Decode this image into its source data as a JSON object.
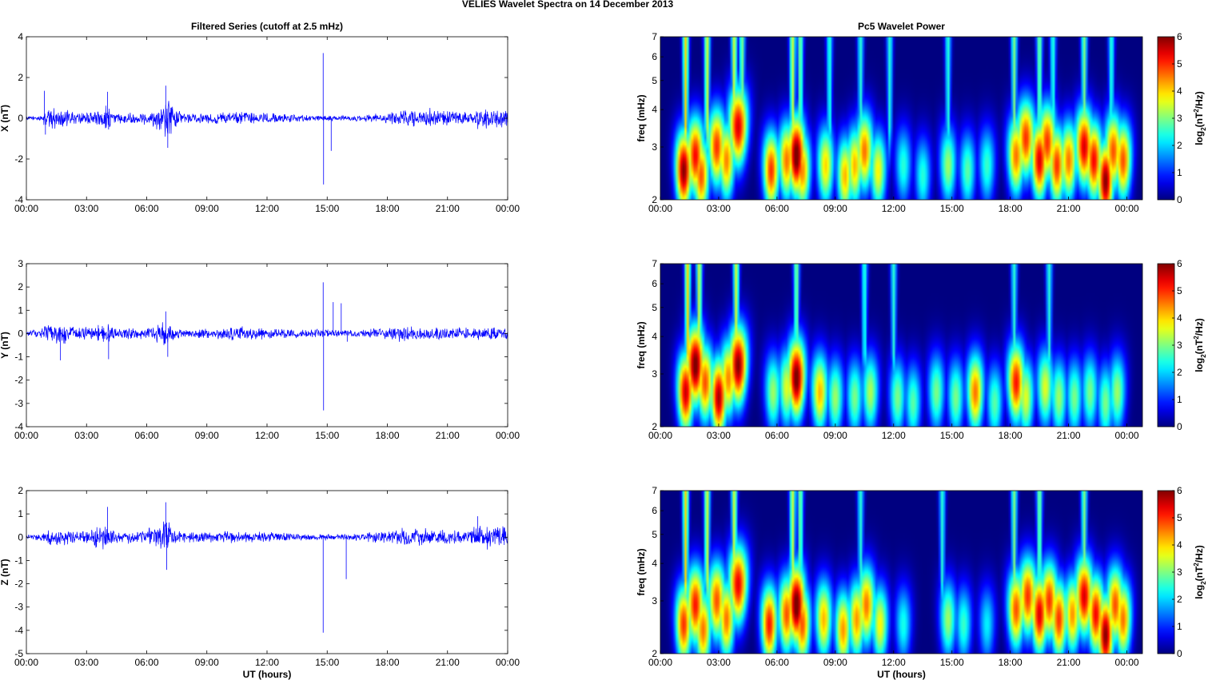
{
  "figure": {
    "title": "VELIES Wavelet Spectra on 14 December  2013"
  },
  "chart_data": [
    {
      "type": "line",
      "panel": "x-series",
      "title": "Filtered Series (cutoff at 2.5 mHz)",
      "ylabel": "X (nT)",
      "xlabel": "",
      "x_ticks": [
        "00:00",
        "03:00",
        "06:00",
        "09:00",
        "12:00",
        "15:00",
        "18:00",
        "21:00",
        "00:00"
      ],
      "xlim_hours": [
        0,
        24
      ],
      "ylim": [
        -4,
        4
      ],
      "y_ticks": [
        -4,
        -2,
        0,
        2,
        4
      ],
      "line_color": "#0000ff",
      "envelope": [
        [
          0,
          0.1
        ],
        [
          0.8,
          0.15
        ],
        [
          1,
          0.7
        ],
        [
          1.5,
          0.55
        ],
        [
          2.5,
          0.35
        ],
        [
          3.5,
          0.4
        ],
        [
          4,
          0.8
        ],
        [
          4.5,
          0.3
        ],
        [
          6,
          0.35
        ],
        [
          6.7,
          0.7
        ],
        [
          7,
          1.2
        ],
        [
          7.4,
          0.5
        ],
        [
          8,
          0.3
        ],
        [
          9,
          0.3
        ],
        [
          10.5,
          0.35
        ],
        [
          12,
          0.3
        ],
        [
          13,
          0.25
        ],
        [
          14.5,
          0.15
        ],
        [
          16,
          0.15
        ],
        [
          17,
          0.2
        ],
        [
          18,
          0.3
        ],
        [
          19,
          0.5
        ],
        [
          20,
          0.55
        ],
        [
          21,
          0.45
        ],
        [
          22,
          0.35
        ],
        [
          22.5,
          0.7
        ],
        [
          23.5,
          0.6
        ],
        [
          24,
          0.6
        ]
      ],
      "spikes": [
        [
          0.9,
          1.35
        ],
        [
          0.95,
          -0.8
        ],
        [
          4.05,
          1.3
        ],
        [
          4.1,
          -0.55
        ],
        [
          6.95,
          1.6
        ],
        [
          7.05,
          -1.45
        ],
        [
          14.8,
          3.2
        ],
        [
          14.82,
          -3.25
        ],
        [
          15.2,
          -1.6
        ]
      ]
    },
    {
      "type": "line",
      "panel": "y-series",
      "title": "",
      "ylabel": "Y (nT)",
      "xlabel": "",
      "x_ticks": [
        "00:00",
        "03:00",
        "06:00",
        "09:00",
        "12:00",
        "15:00",
        "18:00",
        "21:00",
        "00:00"
      ],
      "xlim_hours": [
        0,
        24
      ],
      "ylim": [
        -4,
        3
      ],
      "y_ticks": [
        -4,
        -3,
        -2,
        -1,
        0,
        1,
        2,
        3
      ],
      "line_color": "#0000ff",
      "envelope": [
        [
          0,
          0.1
        ],
        [
          0.8,
          0.3
        ],
        [
          1.2,
          0.55
        ],
        [
          1.8,
          0.55
        ],
        [
          2.5,
          0.35
        ],
        [
          3.5,
          0.35
        ],
        [
          4,
          0.5
        ],
        [
          4.5,
          0.25
        ],
        [
          6,
          0.3
        ],
        [
          7,
          0.6
        ],
        [
          7.4,
          0.3
        ],
        [
          8,
          0.2
        ],
        [
          9.5,
          0.25
        ],
        [
          10.5,
          0.35
        ],
        [
          12,
          0.25
        ],
        [
          14,
          0.2
        ],
        [
          16,
          0.2
        ],
        [
          17,
          0.2
        ],
        [
          18,
          0.3
        ],
        [
          19,
          0.4
        ],
        [
          20,
          0.3
        ],
        [
          21,
          0.3
        ],
        [
          22,
          0.3
        ],
        [
          24,
          0.35
        ]
      ],
      "spikes": [
        [
          1.7,
          -1.15
        ],
        [
          4.1,
          -1.1
        ],
        [
          6.95,
          0.95
        ],
        [
          7.05,
          -1.0
        ],
        [
          14.8,
          2.2
        ],
        [
          14.82,
          -3.3
        ],
        [
          15.3,
          1.35
        ],
        [
          15.7,
          1.3
        ],
        [
          16,
          -0.35
        ]
      ]
    },
    {
      "type": "line",
      "panel": "z-series",
      "title": "",
      "ylabel": "Z (nT)",
      "xlabel": "UT (hours)",
      "x_ticks": [
        "00:00",
        "03:00",
        "06:00",
        "09:00",
        "12:00",
        "15:00",
        "18:00",
        "21:00",
        "00:00"
      ],
      "xlim_hours": [
        0,
        24
      ],
      "ylim": [
        -5,
        2
      ],
      "y_ticks": [
        -5,
        -4,
        -3,
        -2,
        -1,
        0,
        1,
        2
      ],
      "line_color": "#0000ff",
      "envelope": [
        [
          0,
          0.1
        ],
        [
          0.8,
          0.2
        ],
        [
          1.2,
          0.45
        ],
        [
          2,
          0.35
        ],
        [
          3,
          0.3
        ],
        [
          4,
          0.7
        ],
        [
          4.5,
          0.25
        ],
        [
          6,
          0.35
        ],
        [
          7,
          0.9
        ],
        [
          7.4,
          0.3
        ],
        [
          8.5,
          0.25
        ],
        [
          10,
          0.3
        ],
        [
          11,
          0.3
        ],
        [
          13,
          0.2
        ],
        [
          14.5,
          0.15
        ],
        [
          16,
          0.15
        ],
        [
          17,
          0.25
        ],
        [
          18,
          0.3
        ],
        [
          19,
          0.45
        ],
        [
          20,
          0.4
        ],
        [
          21,
          0.35
        ],
        [
          22,
          0.35
        ],
        [
          22.5,
          0.6
        ],
        [
          24,
          0.5
        ]
      ],
      "spikes": [
        [
          4.05,
          1.3
        ],
        [
          6.95,
          1.5
        ],
        [
          7.0,
          -1.4
        ],
        [
          14.8,
          -4.1
        ],
        [
          15.95,
          -1.8
        ],
        [
          22.5,
          0.9
        ]
      ]
    },
    {
      "type": "heatmap",
      "panel": "x-wavelet",
      "title": "Pc5 Wavelet Power",
      "ylabel": "freq (mHz)",
      "xlabel": "",
      "x_ticks": [
        "00:00",
        "03:00",
        "06:00",
        "09:00",
        "12:00",
        "15:00",
        "18:00",
        "21:00",
        "00:00"
      ],
      "xlim_hours": [
        0,
        24.8
      ],
      "ylim_mHz": [
        2,
        7
      ],
      "y_scale": "log",
      "y_ticks": [
        2,
        3,
        4,
        5,
        6,
        7
      ],
      "colorbar": {
        "label_base": "log",
        "label_sub": "2",
        "label_unit": "(nT",
        "label_sup": "2",
        "label_end": "/Hz)",
        "ticks": [
          0,
          1,
          2,
          3,
          4,
          5,
          6
        ],
        "range": [
          0,
          6
        ],
        "colormap": "jet"
      },
      "blobs": [
        [
          1.2,
          2.5,
          6
        ],
        [
          1.8,
          2.8,
          5.3
        ],
        [
          2.1,
          2.4,
          4.8
        ],
        [
          2.9,
          3.0,
          5
        ],
        [
          3.4,
          2.7,
          4.5
        ],
        [
          4.0,
          3.5,
          5.5
        ],
        [
          5.7,
          2.5,
          5
        ],
        [
          6.5,
          2.7,
          4.6
        ],
        [
          7.0,
          2.8,
          6.3
        ],
        [
          7.3,
          2.5,
          4.5
        ],
        [
          8.5,
          2.6,
          4
        ],
        [
          9.5,
          2.4,
          4.2
        ],
        [
          10.0,
          2.6,
          4.2
        ],
        [
          10.5,
          2.9,
          4.6
        ],
        [
          11.2,
          2.5,
          3.8
        ],
        [
          12.5,
          2.6,
          2.5
        ],
        [
          13.5,
          2.4,
          2.5
        ],
        [
          14.8,
          2.6,
          3.2
        ],
        [
          15.8,
          2.5,
          2.8
        ],
        [
          16.8,
          2.6,
          2.6
        ],
        [
          18.3,
          2.8,
          4.6
        ],
        [
          18.8,
          3.2,
          5
        ],
        [
          19.5,
          2.7,
          5.5
        ],
        [
          19.9,
          3.1,
          5
        ],
        [
          20.4,
          2.6,
          5
        ],
        [
          21.0,
          2.7,
          4.6
        ],
        [
          21.8,
          3.0,
          5.5
        ],
        [
          22.3,
          2.7,
          5.3
        ],
        [
          22.9,
          2.3,
          6
        ],
        [
          23.3,
          2.9,
          4.8
        ],
        [
          23.8,
          2.7,
          4.8
        ]
      ],
      "streaks": [
        [
          1.3,
          4
        ],
        [
          2.4,
          3.5
        ],
        [
          3.8,
          3.5
        ],
        [
          4.2,
          3
        ],
        [
          6.8,
          3.5
        ],
        [
          7.2,
          3
        ],
        [
          8.7,
          2.5
        ],
        [
          10.3,
          2.5
        ],
        [
          11.8,
          2.5
        ],
        [
          14.8,
          2.5
        ],
        [
          18.2,
          3
        ],
        [
          19.5,
          3
        ],
        [
          20.2,
          2.5
        ],
        [
          21.8,
          3
        ],
        [
          23.2,
          2.5
        ]
      ]
    },
    {
      "type": "heatmap",
      "panel": "y-wavelet",
      "title": "",
      "ylabel": "freq (mHz)",
      "xlabel": "",
      "x_ticks": [
        "00:00",
        "03:00",
        "06:00",
        "09:00",
        "12:00",
        "15:00",
        "18:00",
        "21:00",
        "00:00"
      ],
      "xlim_hours": [
        0,
        24.8
      ],
      "ylim_mHz": [
        2,
        7
      ],
      "y_scale": "log",
      "y_ticks": [
        2,
        3,
        4,
        5,
        6,
        7
      ],
      "colorbar": {
        "label_base": "log",
        "label_sub": "2",
        "label_unit": "(nT",
        "label_sup": "2",
        "label_end": "/Hz)",
        "ticks": [
          0,
          1,
          2,
          3,
          4,
          5,
          6
        ],
        "range": [
          0,
          6
        ],
        "colormap": "jet"
      },
      "blobs": [
        [
          1.3,
          2.6,
          5.6
        ],
        [
          1.8,
          3.2,
          6.2
        ],
        [
          2.3,
          2.8,
          4.8
        ],
        [
          3.0,
          2.5,
          5.8
        ],
        [
          3.5,
          2.9,
          4.5
        ],
        [
          4.0,
          3.2,
          6
        ],
        [
          5.8,
          2.6,
          3.2
        ],
        [
          6.5,
          2.7,
          3.6
        ],
        [
          7.0,
          2.9,
          6.2
        ],
        [
          8.2,
          2.6,
          4.2
        ],
        [
          9.0,
          2.5,
          3.2
        ],
        [
          10.0,
          2.5,
          3
        ],
        [
          10.8,
          2.6,
          3.3
        ],
        [
          12.2,
          2.5,
          3
        ],
        [
          13.0,
          2.4,
          2.8
        ],
        [
          14.2,
          2.6,
          3
        ],
        [
          15.2,
          2.5,
          3
        ],
        [
          16.2,
          2.6,
          4.6
        ],
        [
          17.2,
          2.4,
          2.8
        ],
        [
          18.3,
          2.8,
          5.2
        ],
        [
          18.8,
          2.5,
          3.6
        ],
        [
          19.8,
          2.7,
          3.6
        ],
        [
          20.5,
          2.5,
          3.2
        ],
        [
          21.3,
          2.5,
          3
        ],
        [
          22.1,
          2.6,
          3
        ],
        [
          22.9,
          2.4,
          3
        ],
        [
          23.5,
          2.6,
          3.2
        ]
      ],
      "streaks": [
        [
          1.4,
          4
        ],
        [
          2.0,
          3.5
        ],
        [
          3.9,
          3.5
        ],
        [
          7.0,
          3
        ],
        [
          10.5,
          2.5
        ],
        [
          12.0,
          2.5
        ],
        [
          18.2,
          2.5
        ],
        [
          20.0,
          2.5
        ]
      ]
    },
    {
      "type": "heatmap",
      "panel": "z-wavelet",
      "title": "",
      "ylabel": "freq (mHz)",
      "xlabel": "UT (hours)",
      "x_ticks": [
        "00:00",
        "03:00",
        "06:00",
        "09:00",
        "12:00",
        "15:00",
        "18:00",
        "21:00",
        "00:00"
      ],
      "xlim_hours": [
        0,
        24.8
      ],
      "ylim_mHz": [
        2,
        7
      ],
      "y_scale": "log",
      "y_ticks": [
        2,
        3,
        4,
        5,
        6,
        7
      ],
      "colorbar": {
        "label_base": "log",
        "label_sub": "2",
        "label_unit": "(nT",
        "label_sup": "2",
        "label_end": "/Hz)",
        "ticks": [
          0,
          1,
          2,
          3,
          4,
          5,
          6
        ],
        "range": [
          0,
          6
        ],
        "colormap": "jet"
      },
      "blobs": [
        [
          1.2,
          2.5,
          5
        ],
        [
          1.8,
          2.9,
          5.2
        ],
        [
          2.2,
          2.4,
          4.6
        ],
        [
          2.9,
          3.0,
          4.8
        ],
        [
          3.4,
          2.6,
          4.6
        ],
        [
          4.0,
          3.4,
          5.4
        ],
        [
          5.6,
          2.5,
          5.2
        ],
        [
          6.5,
          2.7,
          4.8
        ],
        [
          7.0,
          2.9,
          6.3
        ],
        [
          7.3,
          2.5,
          4.8
        ],
        [
          8.4,
          2.6,
          4.2
        ],
        [
          9.4,
          2.4,
          4.4
        ],
        [
          10.1,
          2.6,
          4.4
        ],
        [
          10.6,
          2.9,
          4.6
        ],
        [
          11.3,
          2.5,
          3.8
        ],
        [
          12.5,
          2.5,
          2.4
        ],
        [
          14.8,
          2.6,
          3.2
        ],
        [
          15.6,
          2.5,
          2.6
        ],
        [
          16.8,
          2.5,
          2.2
        ],
        [
          18.3,
          2.8,
          4.8
        ],
        [
          18.9,
          3.1,
          5
        ],
        [
          19.5,
          2.7,
          5.5
        ],
        [
          20.0,
          3.0,
          5
        ],
        [
          20.5,
          2.6,
          5
        ],
        [
          21.2,
          2.7,
          4.4
        ],
        [
          21.8,
          3.1,
          5.5
        ],
        [
          22.4,
          2.7,
          5.3
        ],
        [
          22.9,
          2.3,
          6
        ],
        [
          23.4,
          2.9,
          4.8
        ],
        [
          23.8,
          2.6,
          4.6
        ]
      ],
      "streaks": [
        [
          1.3,
          4
        ],
        [
          2.4,
          3.5
        ],
        [
          3.8,
          3.5
        ],
        [
          6.8,
          3.5
        ],
        [
          7.2,
          3
        ],
        [
          10.3,
          2.5
        ],
        [
          14.5,
          2.5
        ],
        [
          18.2,
          3
        ],
        [
          19.5,
          3
        ],
        [
          21.8,
          3
        ]
      ]
    }
  ]
}
